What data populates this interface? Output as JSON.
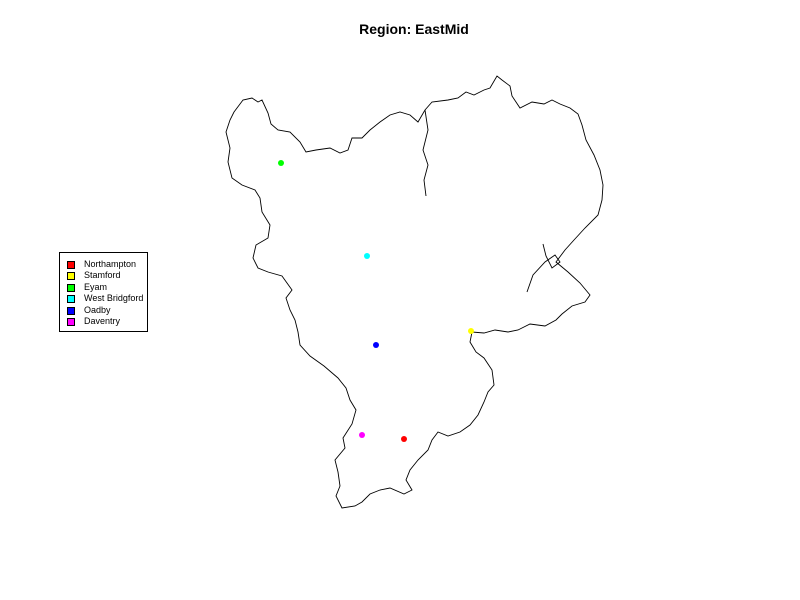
{
  "title": "Region: EastMid",
  "legend": {
    "items": [
      {
        "label": "Northampton",
        "color": "#ff0000"
      },
      {
        "label": "Stamford",
        "color": "#ffff00"
      },
      {
        "label": "Eyam",
        "color": "#00ff00"
      },
      {
        "label": "West Bridgford",
        "color": "#00ffff"
      },
      {
        "label": "Oadby",
        "color": "#0000ff"
      },
      {
        "label": "Daventry",
        "color": "#ff00ff"
      }
    ]
  },
  "map": {
    "region": "EastMid",
    "outline_color": "#000000"
  },
  "towns": [
    {
      "name": "Northampton",
      "color": "#ff0000",
      "marker": "filled-circle"
    },
    {
      "name": "Stamford",
      "color": "#ffff00",
      "marker": "filled-circle"
    },
    {
      "name": "Eyam",
      "color": "#00ff00",
      "marker": "filled-circle"
    },
    {
      "name": "West Bridgford",
      "color": "#00ffff",
      "marker": "filled-circle"
    },
    {
      "name": "Oadby",
      "color": "#0000ff",
      "marker": "filled-circle"
    },
    {
      "name": "Daventry",
      "color": "#ff00ff",
      "marker": "filled-circle"
    }
  ]
}
